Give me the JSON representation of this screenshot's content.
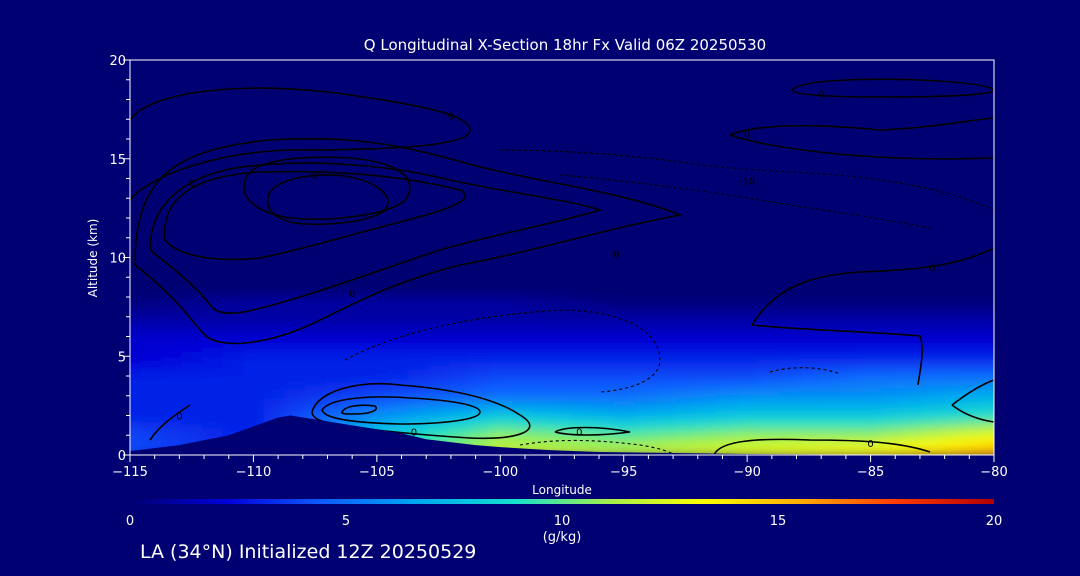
{
  "chart_data": {
    "type": "heatmap",
    "title": "Q Longitudinal X-Section 18hr  Fx Valid 06Z 20250530",
    "xlabel": "Longitude",
    "ylabel": "Altitude (km)",
    "xlim": [
      -115,
      -80
    ],
    "ylim": [
      0,
      20
    ],
    "x_ticks": [
      -115,
      -110,
      -105,
      -100,
      -95,
      -90,
      -85,
      -80
    ],
    "y_ticks": [
      0,
      5,
      10,
      15,
      20
    ],
    "colorbar": {
      "label": "(g/kg)",
      "range": [
        0,
        20
      ],
      "ticks": [
        0,
        5,
        10,
        15,
        20
      ],
      "colors": [
        "#000073",
        "#0000d8",
        "#0f5bff",
        "#00a8f0",
        "#15e0cf",
        "#a6f04a",
        "#ffff00",
        "#ffaa00",
        "#ff3a00",
        "#b00000"
      ]
    },
    "field": {
      "lon": [
        -115,
        -110,
        -105,
        -100,
        -95,
        -90,
        -85,
        -80
      ],
      "alt": [
        0,
        1,
        2,
        3,
        4,
        5,
        6,
        7,
        8
      ],
      "q": [
        [
          4,
          3,
          9,
          12,
          12,
          13,
          14,
          16
        ],
        [
          4,
          3,
          8,
          11,
          10,
          11,
          11,
          13
        ],
        [
          3,
          3,
          6,
          8,
          7,
          8,
          8,
          9
        ],
        [
          3,
          3,
          4,
          5,
          5,
          6,
          6,
          7
        ],
        [
          3,
          3,
          3,
          4,
          4,
          4,
          5,
          5
        ],
        [
          2,
          3,
          3,
          3,
          3,
          3,
          3,
          3
        ],
        [
          2,
          2,
          2,
          2,
          2,
          2,
          2,
          2
        ],
        [
          1,
          1,
          1,
          1,
          1,
          1,
          1,
          1
        ],
        [
          0,
          1,
          1,
          1,
          0,
          0,
          0,
          0
        ]
      ]
    },
    "terrain": {
      "lon": [
        -115,
        -113,
        -111,
        -109,
        -108.5,
        -107.5,
        -106,
        -105,
        -104,
        -103,
        -101,
        -100,
        -98,
        -96,
        -93,
        -90,
        -85,
        -80
      ],
      "alt": [
        0.2,
        0.5,
        1.0,
        1.9,
        2.0,
        1.8,
        1.5,
        1.3,
        1.1,
        0.8,
        0.5,
        0.4,
        0.25,
        0.15,
        0.1,
        0.05,
        0.02,
        0
      ]
    },
    "contour_labels": [
      {
        "text": "0",
        "lon": -102,
        "alt": 17.2
      },
      {
        "text": "0",
        "lon": -107.5,
        "alt": 14.2
      },
      {
        "text": "0",
        "lon": -112.5,
        "alt": 13.8
      },
      {
        "text": "0",
        "lon": -95.3,
        "alt": 10.2
      },
      {
        "text": "0",
        "lon": -106,
        "alt": 8.2
      },
      {
        "text": "0",
        "lon": -113,
        "alt": 2.0
      },
      {
        "text": "0",
        "lon": -103.5,
        "alt": 1.2
      },
      {
        "text": "0",
        "lon": -96.8,
        "alt": 1.2
      },
      {
        "text": "0",
        "lon": -85,
        "alt": 0.6
      },
      {
        "text": "0",
        "lon": -87,
        "alt": 18.3
      },
      {
        "text": "0",
        "lon": -90,
        "alt": 16.3
      },
      {
        "text": "0",
        "lon": -82.5,
        "alt": 9.5
      },
      {
        "text": "-10",
        "lon": -90,
        "alt": 13.9
      }
    ]
  },
  "footer": {
    "text": "LA (34°N) Initialized 12Z 20250529"
  }
}
